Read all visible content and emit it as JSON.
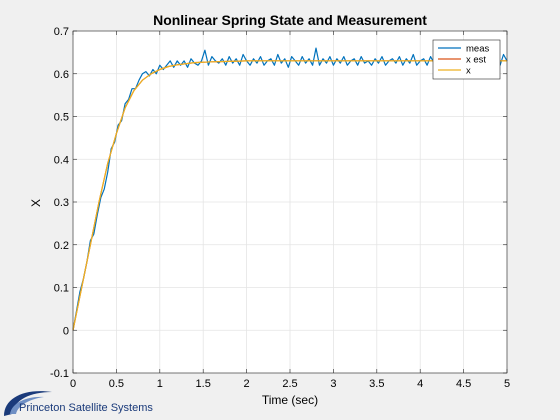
{
  "chart_data": {
    "type": "line",
    "title": "Nonlinear Spring State and Measurement",
    "xlabel": "Time (sec)",
    "ylabel": "X",
    "xlim": [
      0,
      5
    ],
    "ylim": [
      -0.1,
      0.7
    ],
    "xticks": [
      0,
      0.5,
      1,
      1.5,
      2,
      2.5,
      3,
      3.5,
      4,
      4.5,
      5
    ],
    "xtick_labels": [
      "0",
      "0.5",
      "1",
      "1.5",
      "2",
      "2.5",
      "3",
      "3.5",
      "4",
      "4.5",
      "5"
    ],
    "yticks": [
      -0.1,
      0,
      0.1,
      0.2,
      0.3,
      0.4,
      0.5,
      0.6,
      0.7
    ],
    "ytick_labels": [
      "-0.1",
      "0",
      "0.1",
      "0.2",
      "0.3",
      "0.4",
      "0.5",
      "0.6",
      "0.7"
    ],
    "grid": true,
    "legend_position": "top-right",
    "series": [
      {
        "name": "meas",
        "color": "#0072bd",
        "x": [
          0,
          0.04,
          0.08,
          0.12,
          0.16,
          0.2,
          0.24,
          0.28,
          0.32,
          0.36,
          0.4,
          0.44,
          0.48,
          0.52,
          0.56,
          0.6,
          0.64,
          0.68,
          0.72,
          0.76,
          0.8,
          0.84,
          0.88,
          0.92,
          0.96,
          1.0,
          1.04,
          1.08,
          1.12,
          1.16,
          1.2,
          1.24,
          1.28,
          1.32,
          1.36,
          1.4,
          1.44,
          1.48,
          1.52,
          1.56,
          1.6,
          1.64,
          1.68,
          1.72,
          1.76,
          1.8,
          1.84,
          1.88,
          1.92,
          1.96,
          2.0,
          2.04,
          2.08,
          2.12,
          2.16,
          2.2,
          2.24,
          2.28,
          2.32,
          2.36,
          2.4,
          2.44,
          2.48,
          2.52,
          2.56,
          2.6,
          2.64,
          2.68,
          2.72,
          2.76,
          2.8,
          2.84,
          2.88,
          2.92,
          2.96,
          3.0,
          3.04,
          3.08,
          3.12,
          3.16,
          3.2,
          3.24,
          3.28,
          3.32,
          3.36,
          3.4,
          3.44,
          3.48,
          3.52,
          3.56,
          3.6,
          3.64,
          3.68,
          3.72,
          3.76,
          3.8,
          3.84,
          3.88,
          3.92,
          3.96,
          4.0,
          4.04,
          4.08,
          4.12,
          4.16,
          4.2,
          4.24,
          4.28,
          4.32,
          4.36,
          4.4,
          4.44,
          4.48,
          4.52,
          4.56,
          4.6,
          4.64,
          4.68,
          4.72,
          4.76,
          4.8,
          4.84,
          4.88,
          4.92,
          4.96,
          5.0
        ],
        "y": [
          0.0,
          0.045,
          0.09,
          0.12,
          0.16,
          0.21,
          0.225,
          0.27,
          0.31,
          0.33,
          0.37,
          0.425,
          0.44,
          0.48,
          0.49,
          0.53,
          0.54,
          0.565,
          0.565,
          0.585,
          0.6,
          0.605,
          0.595,
          0.61,
          0.6,
          0.62,
          0.61,
          0.62,
          0.63,
          0.615,
          0.63,
          0.62,
          0.63,
          0.615,
          0.635,
          0.625,
          0.62,
          0.63,
          0.655,
          0.62,
          0.64,
          0.63,
          0.625,
          0.635,
          0.62,
          0.64,
          0.625,
          0.635,
          0.62,
          0.645,
          0.63,
          0.62,
          0.635,
          0.625,
          0.64,
          0.62,
          0.63,
          0.635,
          0.62,
          0.645,
          0.625,
          0.635,
          0.615,
          0.64,
          0.63,
          0.62,
          0.64,
          0.625,
          0.635,
          0.62,
          0.66,
          0.62,
          0.635,
          0.625,
          0.64,
          0.62,
          0.635,
          0.625,
          0.64,
          0.62,
          0.63,
          0.635,
          0.62,
          0.64,
          0.625,
          0.63,
          0.62,
          0.635,
          0.625,
          0.64,
          0.62,
          0.63,
          0.635,
          0.625,
          0.64,
          0.62,
          0.635,
          0.625,
          0.645,
          0.62,
          0.63,
          0.635,
          0.62,
          0.64,
          0.625,
          0.635,
          0.62,
          0.64,
          0.625,
          0.63,
          0.62,
          0.64,
          0.625,
          0.635,
          0.62,
          0.64,
          0.625,
          0.63,
          0.635,
          0.62,
          0.64,
          0.625,
          0.63,
          0.62,
          0.645,
          0.63
        ]
      },
      {
        "name": "x est",
        "color": "#d95319",
        "x": [
          0,
          0.1,
          0.2,
          0.3,
          0.4,
          0.5,
          0.6,
          0.7,
          0.8,
          0.9,
          1.0,
          1.1,
          1.2,
          1.4,
          1.6,
          1.8,
          2.0,
          2.5,
          3.0,
          3.5,
          4.0,
          4.5,
          5.0
        ],
        "y": [
          0.0,
          0.1,
          0.2,
          0.3,
          0.39,
          0.46,
          0.52,
          0.56,
          0.585,
          0.6,
          0.61,
          0.617,
          0.621,
          0.626,
          0.628,
          0.629,
          0.63,
          0.63,
          0.63,
          0.63,
          0.63,
          0.63,
          0.63
        ]
      },
      {
        "name": "x",
        "color": "#edb120",
        "x": [
          0,
          0.1,
          0.2,
          0.3,
          0.4,
          0.5,
          0.6,
          0.7,
          0.8,
          0.9,
          1.0,
          1.1,
          1.2,
          1.4,
          1.6,
          1.8,
          2.0,
          2.5,
          3.0,
          3.5,
          4.0,
          4.5,
          5.0
        ],
        "y": [
          0.0,
          0.1,
          0.2,
          0.3,
          0.39,
          0.46,
          0.52,
          0.56,
          0.585,
          0.6,
          0.61,
          0.617,
          0.621,
          0.626,
          0.628,
          0.629,
          0.63,
          0.63,
          0.63,
          0.63,
          0.63,
          0.63,
          0.63
        ]
      }
    ]
  },
  "logo": {
    "text": "Princeton Satellite Systems",
    "color": "#1a3a7a"
  },
  "style": {
    "figure_bg": "#f0f0f0",
    "axes_bg": "#ffffff",
    "grid_color": "#e4e4e4",
    "axis_color": "#262626"
  }
}
